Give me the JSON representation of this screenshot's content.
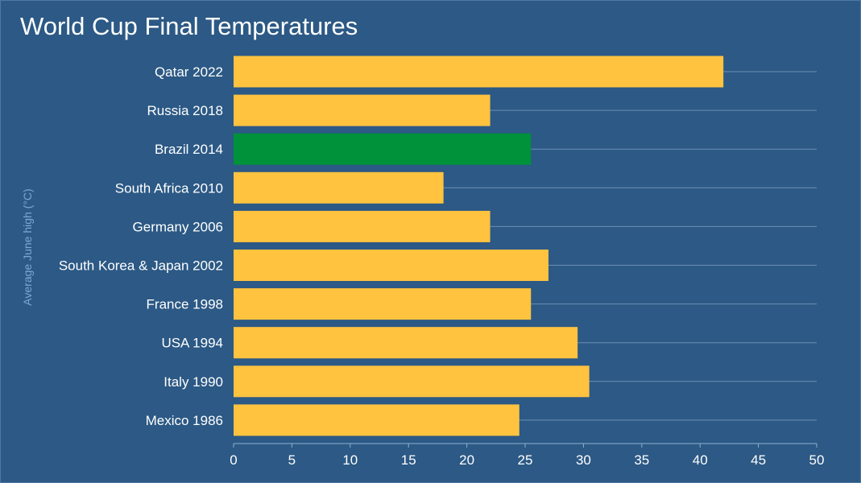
{
  "chart_data": {
    "type": "bar",
    "orientation": "horizontal",
    "title": "World Cup Final Temperatures",
    "ylabel": "Average June high (°C)",
    "xlabel": "",
    "categories": [
      "Qatar 2022",
      "Russia 2018",
      "Brazil 2014",
      "South Africa 2010",
      "Germany 2006",
      "South Korea & Japan 2002",
      "France 1998",
      "USA 1994",
      "Italy 1990",
      "Mexico 1986"
    ],
    "values": [
      42,
      22,
      25.5,
      18,
      22,
      27,
      25.5,
      29.5,
      30.5,
      24.5
    ],
    "highlight": "Brazil 2014",
    "xlim": [
      0,
      50
    ],
    "xticks": [
      0,
      5,
      10,
      15,
      20,
      25,
      30,
      35,
      40,
      45,
      50
    ],
    "grid": true,
    "legend": "none",
    "colors": {
      "background": "#2c5985",
      "bar": "#ffc340",
      "highlight_bar": "#00913b",
      "grid": "#6b8fb5",
      "axis": "#8fb0d0",
      "text": "#ffffff",
      "axis_title": "#7ca8d4"
    }
  }
}
